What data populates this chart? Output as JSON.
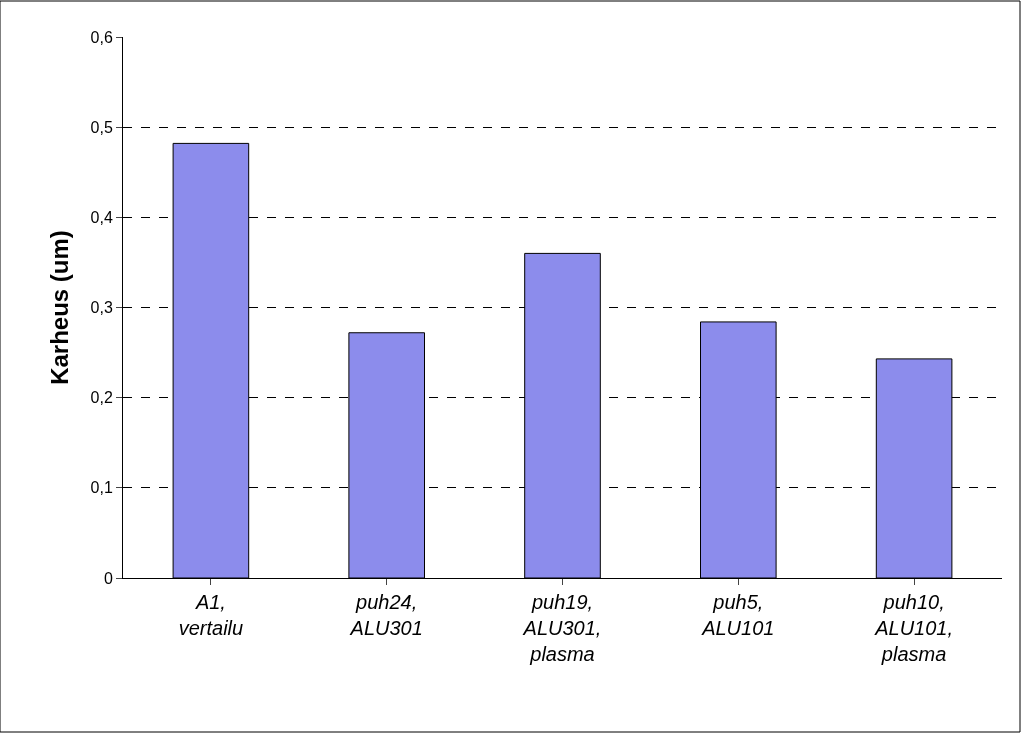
{
  "chart_data": {
    "type": "bar",
    "ylabel": "Karheus (um)",
    "categories": [
      "A1, vertailu",
      "puh24, ALU301",
      "puh19, ALU301, plasma",
      "puh5, ALU101",
      "puh10, ALU101, plasma"
    ],
    "values": [
      0.482,
      0.272,
      0.36,
      0.284,
      0.243
    ],
    "color": "#8c8cec",
    "ylim": [
      0,
      0.6
    ],
    "yticks": [
      {
        "value": 0,
        "label": "0"
      },
      {
        "value": 0.1,
        "label": "0,1"
      },
      {
        "value": 0.2,
        "label": "0,2"
      },
      {
        "value": 0.3,
        "label": "0,3"
      },
      {
        "value": 0.4,
        "label": "0,4"
      },
      {
        "value": 0.5,
        "label": "0,5"
      },
      {
        "value": 0.6,
        "label": "0,6"
      }
    ],
    "grid": "y",
    "line_style": "dashed"
  }
}
